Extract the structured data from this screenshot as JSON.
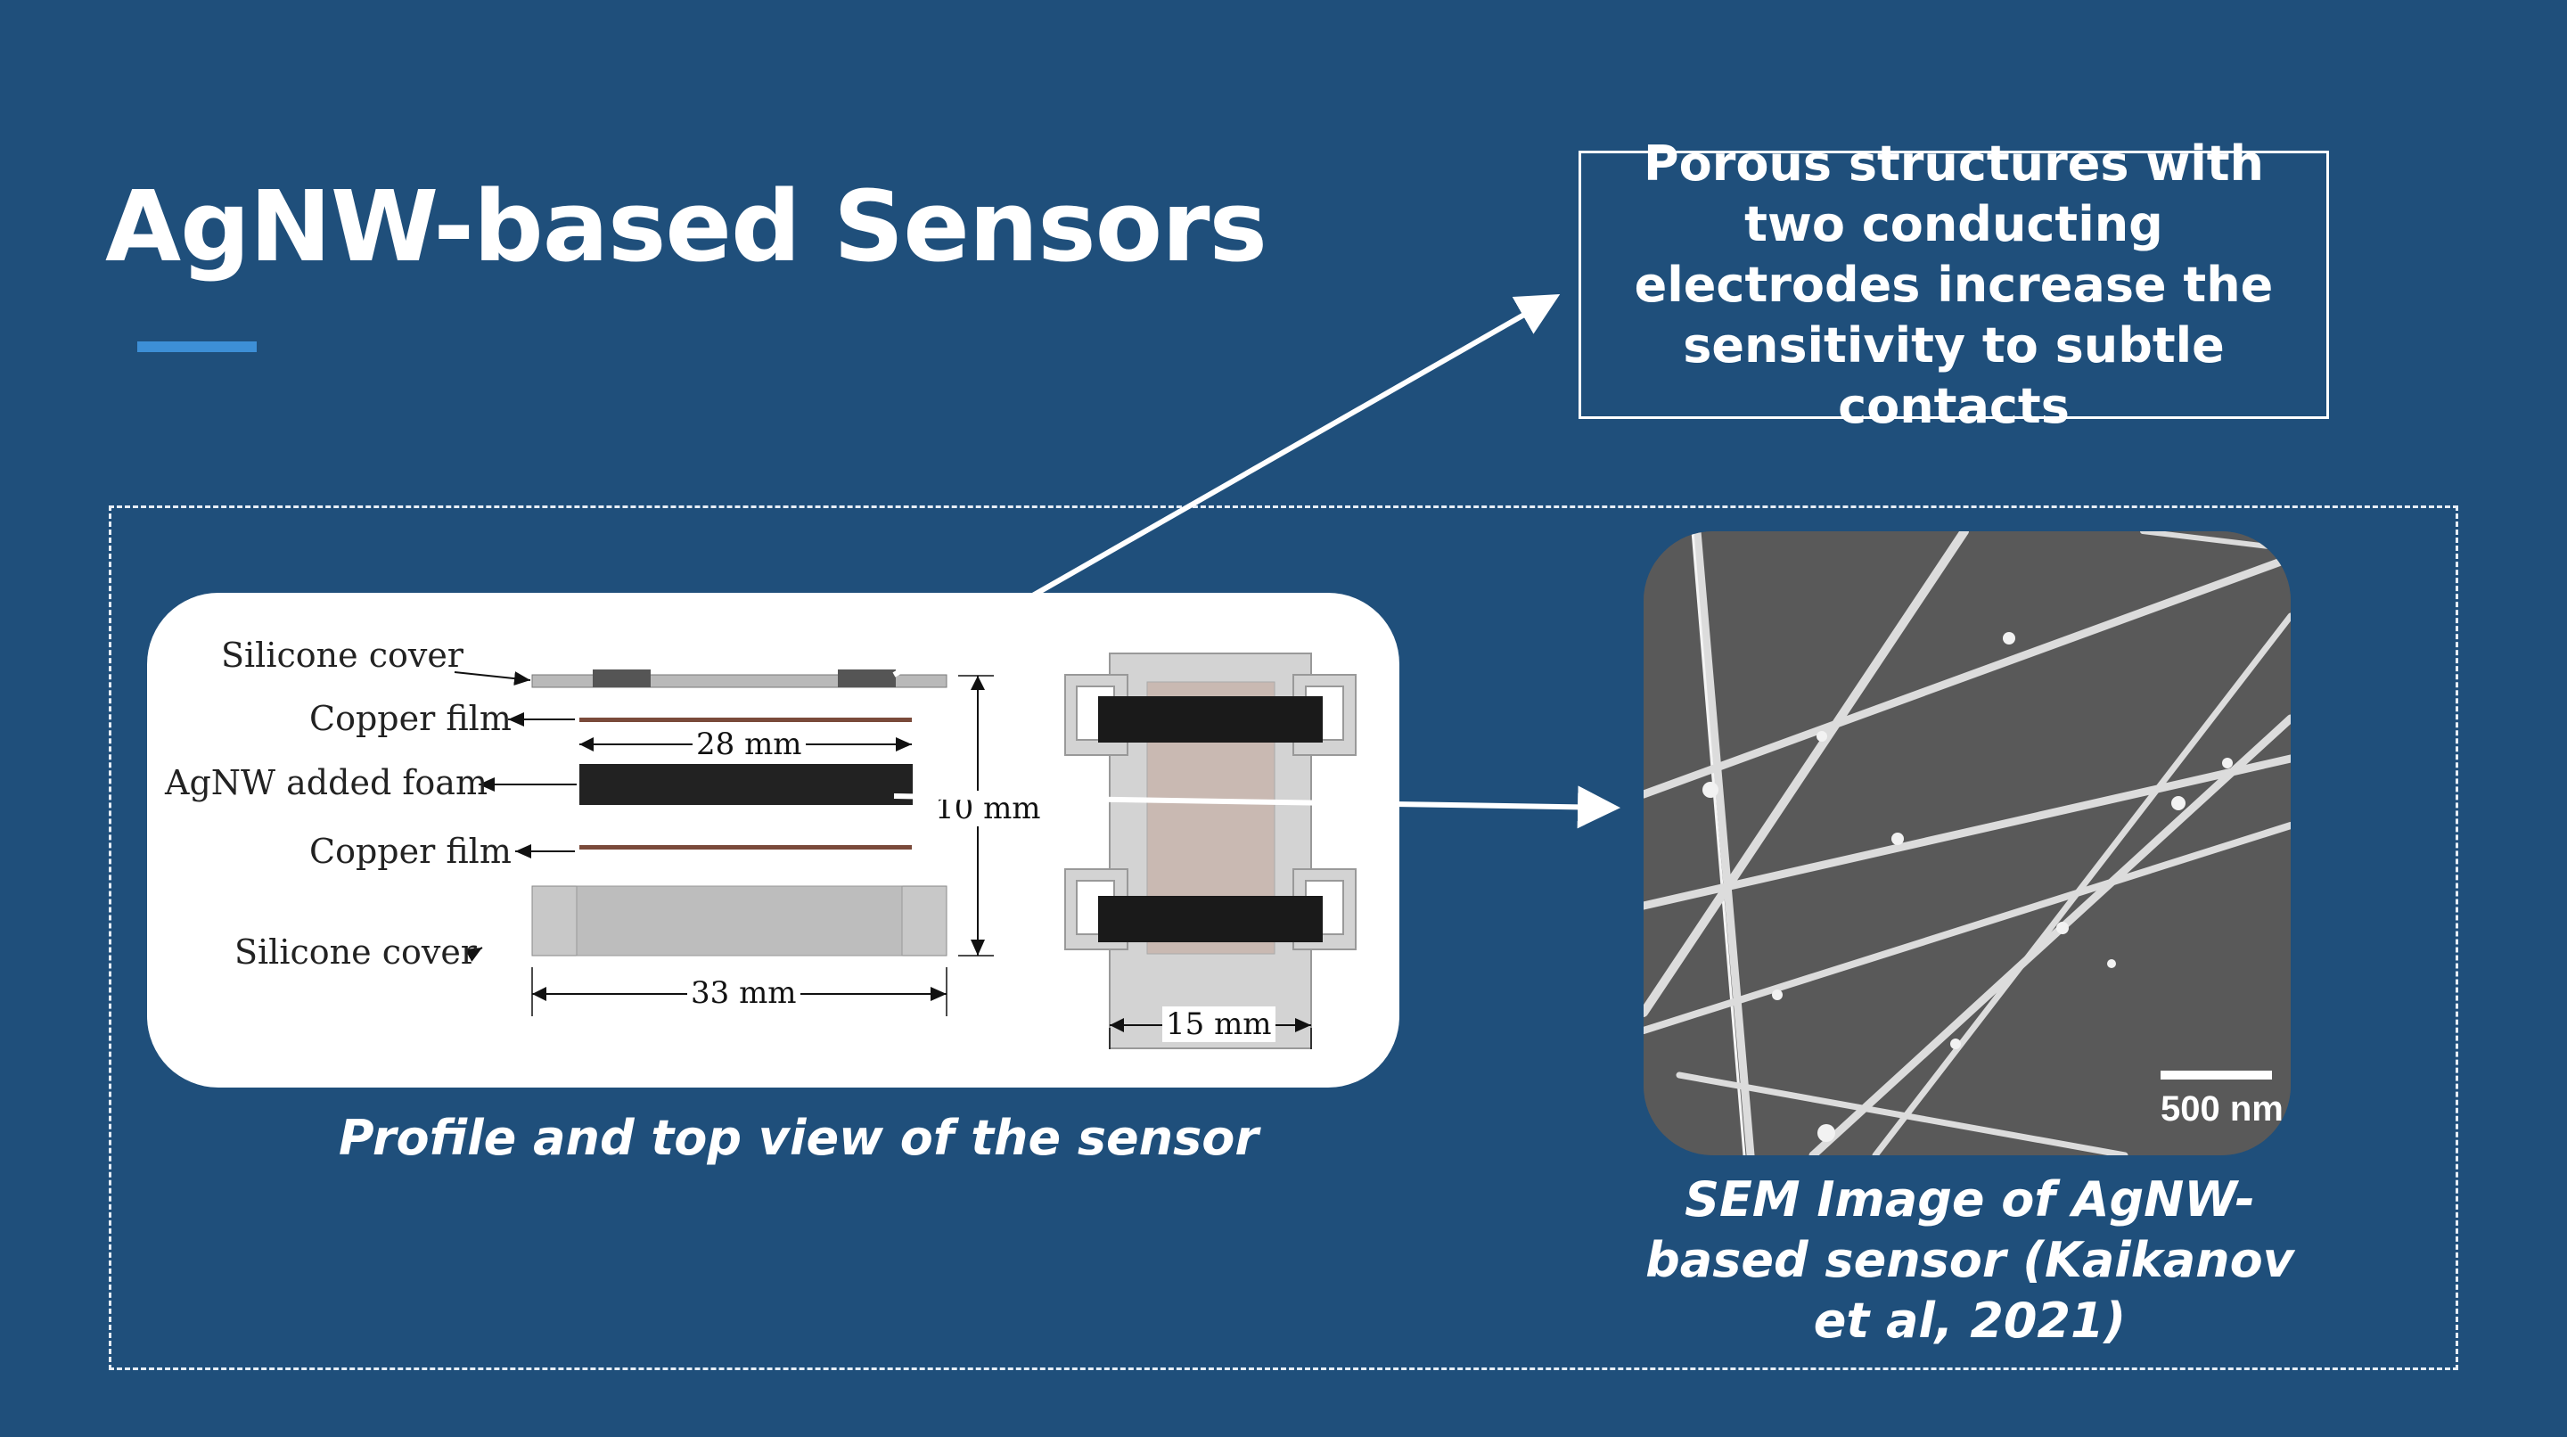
{
  "slide": {
    "title": "AgNW-based Sensors",
    "callout": "Porous structures with two conducting electrodes increase the sensitivity to subtle contacts",
    "colors": {
      "background": "#1f4f7b",
      "accent": "#3d8fd6",
      "text": "#ffffff"
    }
  },
  "diagram": {
    "labels": {
      "silicone_cover_top": "Silicone cover",
      "copper_film_top": "Copper film",
      "agnw_foam": "AgNW added foam",
      "copper_film_bottom": "Copper film",
      "silicone_cover_bottom": "Silicone cover"
    },
    "dimensions": {
      "foam_length": "28 mm",
      "height": "10 mm",
      "cover_length": "33 mm",
      "width": "15 mm"
    },
    "caption": "Profile and top view of the sensor"
  },
  "sem": {
    "scale_bar": "500 nm",
    "caption": "SEM Image of AgNW-based sensor (Kaikanov et al, 2021)"
  }
}
